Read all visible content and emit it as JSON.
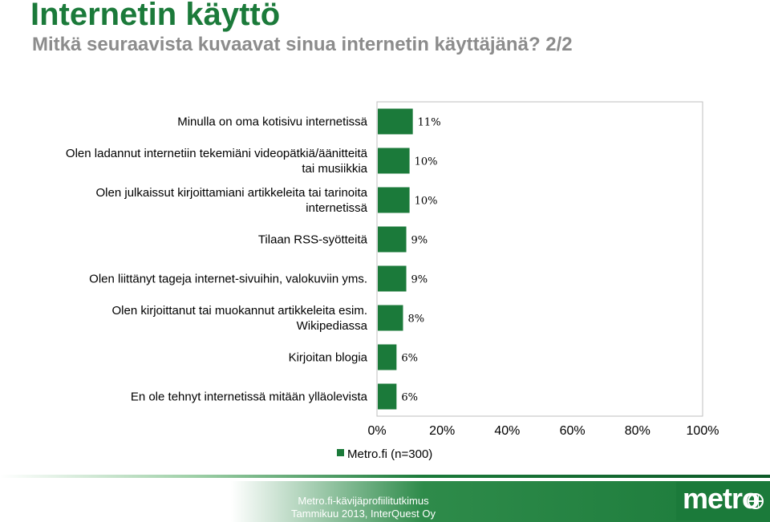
{
  "title": "Internetin käyttö",
  "subtitle": "Mitkä seuraavista kuvaavat sinua internetin käyttäjänä? 2/2",
  "footer": {
    "line1": "Metro.fi-kävijäprofiilitutkimus",
    "line2": "Tammikuu 2013, InterQuest Oy",
    "logo_text": "metro"
  },
  "colors": {
    "bar": "#1b7a3a",
    "title": "#1b7a3a",
    "subtitle": "#8c8c8c"
  },
  "chart_data": {
    "type": "bar",
    "orientation": "horizontal",
    "categories": [
      [
        "Minulla on oma kotisivu internetissä"
      ],
      [
        "Olen ladannut internetiin tekemiäni videopätkiä/äänitteitä",
        "tai musiikkia"
      ],
      [
        "Olen julkaissut kirjoittamiani artikkeleita tai tarinoita",
        "internetissä"
      ],
      [
        "Tilaan RSS-syötteitä"
      ],
      [
        "Olen liittänyt tageja internet-sivuihin, valokuviin yms."
      ],
      [
        "Olen kirjoittanut tai muokannut artikkeleita esim.",
        "Wikipediassa"
      ],
      [
        "Kirjoitan blogia"
      ],
      [
        "En ole tehnyt internetissä mitään ylläolevista"
      ]
    ],
    "series": [
      {
        "name": "Metro.fi (n=300)",
        "values": [
          11,
          10,
          10,
          9,
          9,
          8,
          6,
          6
        ],
        "labels": [
          "11%",
          "10%",
          "10%",
          "9%",
          "9%",
          "8%",
          "6%",
          "6%"
        ]
      }
    ],
    "xlim": [
      0,
      100
    ],
    "x_ticks": [
      "0%",
      "20%",
      "40%",
      "60%",
      "80%",
      "100%"
    ],
    "legend_position": "bottom",
    "grid": false
  }
}
